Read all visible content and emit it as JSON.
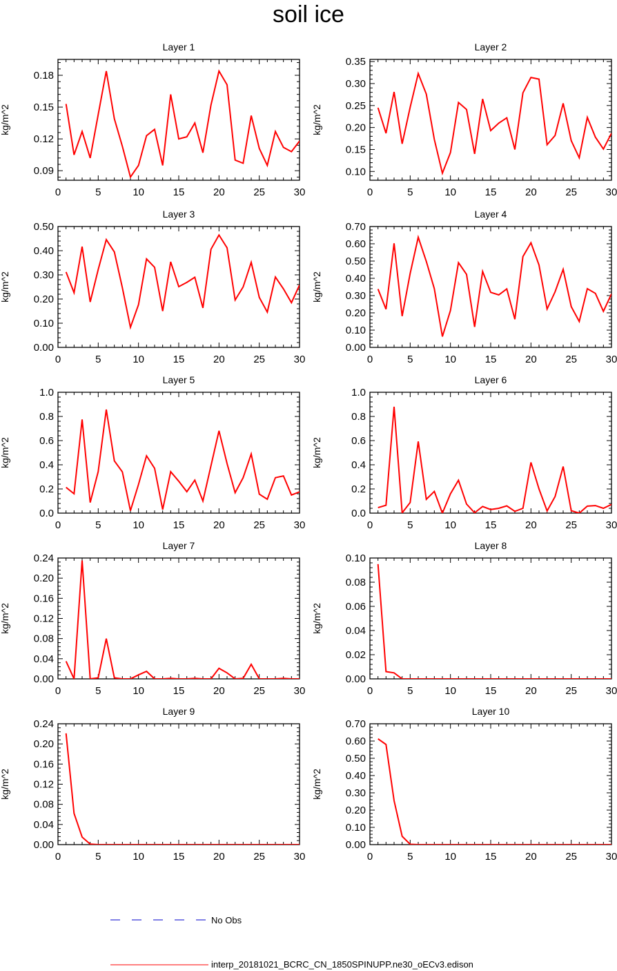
{
  "title": "soil ice",
  "colors": {
    "model": "#ff0000",
    "obs": "#0000cc",
    "axis": "#000000"
  },
  "legend": {
    "obs_label": "No Obs",
    "model_label": "interp_20181021_BCRC_CN_1850SPINUPP.ne30_oECv3.edison"
  },
  "chart_data": [
    {
      "type": "line",
      "title": "Layer 1",
      "ylabel": "kg/m^2",
      "xlim": [
        0,
        30
      ],
      "ylim": [
        0.081,
        0.195
      ],
      "xticks": [
        0,
        5,
        10,
        15,
        20,
        25,
        30
      ],
      "yticks": [
        0.09,
        0.12,
        0.15,
        0.18
      ],
      "ytick_labels": [
        "0.09",
        "0.12",
        "0.15",
        "0.18"
      ],
      "x": [
        1,
        2,
        3,
        4,
        5,
        6,
        7,
        8,
        9,
        10,
        11,
        12,
        13,
        14,
        15,
        16,
        17,
        18,
        19,
        20,
        21,
        22,
        23,
        24,
        25,
        26,
        27,
        28,
        29,
        30
      ],
      "series": [
        {
          "values": [
            0.153,
            0.105,
            0.127,
            0.102,
            0.143,
            0.184,
            0.139,
            0.113,
            0.084,
            0.095,
            0.123,
            0.129,
            0.095,
            0.162,
            0.12,
            0.122,
            0.135,
            0.107,
            0.152,
            0.184,
            0.171,
            0.1,
            0.097,
            0.142,
            0.111,
            0.095,
            0.127,
            0.112,
            0.108,
            0.118
          ]
        }
      ]
    },
    {
      "type": "line",
      "title": "Layer 2",
      "ylabel": "kg/m^2",
      "xlim": [
        0,
        30
      ],
      "ylim": [
        0.08,
        0.355
      ],
      "xticks": [
        0,
        5,
        10,
        15,
        20,
        25,
        30
      ],
      "yticks": [
        0.1,
        0.15,
        0.2,
        0.25,
        0.3,
        0.35
      ],
      "ytick_labels": [
        "0.10",
        "0.15",
        "0.20",
        "0.25",
        "0.30",
        "0.35"
      ],
      "x": [
        1,
        2,
        3,
        4,
        5,
        6,
        7,
        8,
        9,
        10,
        11,
        12,
        13,
        14,
        15,
        16,
        17,
        18,
        19,
        20,
        21,
        22,
        23,
        24,
        25,
        26,
        27,
        28,
        29,
        30
      ],
      "series": [
        {
          "values": [
            0.245,
            0.187,
            0.281,
            0.163,
            0.246,
            0.323,
            0.276,
            0.173,
            0.096,
            0.143,
            0.257,
            0.241,
            0.14,
            0.265,
            0.193,
            0.21,
            0.222,
            0.15,
            0.279,
            0.314,
            0.31,
            0.161,
            0.182,
            0.255,
            0.17,
            0.131,
            0.223,
            0.178,
            0.151,
            0.187
          ]
        }
      ]
    },
    {
      "type": "line",
      "title": "Layer 3",
      "ylabel": "kg/m^2",
      "xlim": [
        0,
        30
      ],
      "ylim": [
        0,
        0.5
      ],
      "xticks": [
        0,
        5,
        10,
        15,
        20,
        25,
        30
      ],
      "yticks": [
        0,
        0.1,
        0.2,
        0.3,
        0.4,
        0.5
      ],
      "ytick_labels": [
        "0.00",
        "0.10",
        "0.20",
        "0.30",
        "0.40",
        "0.50"
      ],
      "x": [
        1,
        2,
        3,
        4,
        5,
        6,
        7,
        8,
        9,
        10,
        11,
        12,
        13,
        14,
        15,
        16,
        17,
        18,
        19,
        20,
        21,
        22,
        23,
        24,
        25,
        26,
        27,
        28,
        29,
        30
      ],
      "series": [
        {
          "values": [
            0.312,
            0.226,
            0.417,
            0.188,
            0.322,
            0.446,
            0.395,
            0.247,
            0.083,
            0.177,
            0.366,
            0.331,
            0.15,
            0.354,
            0.251,
            0.269,
            0.29,
            0.163,
            0.406,
            0.465,
            0.412,
            0.196,
            0.25,
            0.352,
            0.207,
            0.146,
            0.291,
            0.242,
            0.185,
            0.258
          ]
        }
      ]
    },
    {
      "type": "line",
      "title": "Layer 4",
      "ylabel": "kg/m^2",
      "xlim": [
        0,
        30
      ],
      "ylim": [
        0,
        0.7
      ],
      "xticks": [
        0,
        5,
        10,
        15,
        20,
        25,
        30
      ],
      "yticks": [
        0,
        0.1,
        0.2,
        0.3,
        0.4,
        0.5,
        0.6,
        0.7
      ],
      "ytick_labels": [
        "0.00",
        "0.10",
        "0.20",
        "0.30",
        "0.40",
        "0.50",
        "0.60",
        "0.70"
      ],
      "x": [
        1,
        2,
        3,
        4,
        5,
        6,
        7,
        8,
        9,
        10,
        11,
        12,
        13,
        14,
        15,
        16,
        17,
        18,
        19,
        20,
        21,
        22,
        23,
        24,
        25,
        26,
        27,
        28,
        29,
        30
      ],
      "series": [
        {
          "values": [
            0.338,
            0.221,
            0.603,
            0.181,
            0.428,
            0.638,
            0.498,
            0.34,
            0.063,
            0.214,
            0.491,
            0.423,
            0.119,
            0.44,
            0.319,
            0.304,
            0.339,
            0.163,
            0.526,
            0.606,
            0.477,
            0.222,
            0.322,
            0.452,
            0.236,
            0.15,
            0.34,
            0.313,
            0.209,
            0.31
          ]
        }
      ]
    },
    {
      "type": "line",
      "title": "Layer 5",
      "ylabel": "kg/m^2",
      "xlim": [
        0,
        30
      ],
      "ylim": [
        0,
        1.0
      ],
      "xticks": [
        0,
        5,
        10,
        15,
        20,
        25,
        30
      ],
      "yticks": [
        0,
        0.2,
        0.4,
        0.6,
        0.8,
        1.0
      ],
      "ytick_labels": [
        "0.0",
        "0.2",
        "0.4",
        "0.6",
        "0.8",
        "1.0"
      ],
      "x": [
        1,
        2,
        3,
        4,
        5,
        6,
        7,
        8,
        9,
        10,
        11,
        12,
        13,
        14,
        15,
        16,
        17,
        18,
        19,
        20,
        21,
        22,
        23,
        24,
        25,
        26,
        27,
        28,
        29,
        30
      ],
      "series": [
        {
          "values": [
            0.213,
            0.16,
            0.775,
            0.088,
            0.344,
            0.857,
            0.432,
            0.341,
            0.02,
            0.238,
            0.474,
            0.371,
            0.03,
            0.343,
            0.264,
            0.177,
            0.273,
            0.1,
            0.392,
            0.681,
            0.41,
            0.169,
            0.293,
            0.49,
            0.157,
            0.115,
            0.293,
            0.308,
            0.15,
            0.176
          ]
        }
      ]
    },
    {
      "type": "line",
      "title": "Layer 6",
      "ylabel": "kg/m^2",
      "xlim": [
        0,
        30
      ],
      "ylim": [
        0,
        1.0
      ],
      "xticks": [
        0,
        5,
        10,
        15,
        20,
        25,
        30
      ],
      "yticks": [
        0,
        0.2,
        0.4,
        0.6,
        0.8,
        1.0
      ],
      "ytick_labels": [
        "0.0",
        "0.2",
        "0.4",
        "0.6",
        "0.8",
        "1.0"
      ],
      "x": [
        1,
        2,
        3,
        4,
        5,
        6,
        7,
        8,
        9,
        10,
        11,
        12,
        13,
        14,
        15,
        16,
        17,
        18,
        19,
        20,
        21,
        22,
        23,
        24,
        25,
        26,
        27,
        28,
        29,
        30
      ],
      "series": [
        {
          "values": [
            0.045,
            0.065,
            0.88,
            0.002,
            0.088,
            0.593,
            0.114,
            0.18,
            0.0,
            0.16,
            0.272,
            0.075,
            0.003,
            0.055,
            0.03,
            0.04,
            0.06,
            0.015,
            0.04,
            0.42,
            0.2,
            0.018,
            0.137,
            0.386,
            0.02,
            0.0,
            0.058,
            0.062,
            0.04,
            0.072
          ]
        }
      ]
    },
    {
      "type": "line",
      "title": "Layer 7",
      "ylabel": "kg/m^2",
      "xlim": [
        0,
        30
      ],
      "ylim": [
        0,
        0.24
      ],
      "xticks": [
        0,
        5,
        10,
        15,
        20,
        25,
        30
      ],
      "yticks": [
        0,
        0.04,
        0.08,
        0.12,
        0.16,
        0.2,
        0.24
      ],
      "ytick_labels": [
        "0.00",
        "0.04",
        "0.08",
        "0.12",
        "0.16",
        "0.20",
        "0.24"
      ],
      "x": [
        1,
        2,
        3,
        4,
        5,
        6,
        7,
        8,
        9,
        10,
        11,
        12,
        13,
        14,
        15,
        16,
        17,
        18,
        19,
        20,
        21,
        22,
        23,
        24,
        25,
        26,
        27,
        28,
        29,
        30
      ],
      "series": [
        {
          "values": [
            0.035,
            0.0,
            0.235,
            0.0,
            0.002,
            0.08,
            0.002,
            0.0,
            0.0,
            0.008,
            0.015,
            0.0,
            0.0,
            0.001,
            0.0,
            0.0,
            0.001,
            0.0,
            0.0,
            0.021,
            0.012,
            0.0,
            0.001,
            0.029,
            0.0,
            0.0,
            0.0,
            0.001,
            0.0,
            0.0
          ]
        }
      ]
    },
    {
      "type": "line",
      "title": "Layer 8",
      "ylabel": "kg/m^2",
      "xlim": [
        0,
        30
      ],
      "ylim": [
        0,
        0.1
      ],
      "xticks": [
        0,
        5,
        10,
        15,
        20,
        25,
        30
      ],
      "yticks": [
        0,
        0.02,
        0.04,
        0.06,
        0.08,
        0.1
      ],
      "ytick_labels": [
        "0.00",
        "0.02",
        "0.04",
        "0.06",
        "0.08",
        "0.10"
      ],
      "x": [
        1,
        2,
        3,
        4,
        5,
        6,
        7,
        8,
        9,
        10,
        11,
        12,
        13,
        14,
        15,
        16,
        17,
        18,
        19,
        20,
        21,
        22,
        23,
        24,
        25,
        26,
        27,
        28,
        29,
        30
      ],
      "series": [
        {
          "values": [
            0.095,
            0.006,
            0.005,
            0.0,
            0,
            0,
            0,
            0,
            0,
            0,
            0,
            0,
            0,
            0,
            0,
            0,
            0,
            0,
            0,
            0,
            0,
            0,
            0,
            0,
            0,
            0,
            0,
            0,
            0,
            0
          ]
        }
      ]
    },
    {
      "type": "line",
      "title": "Layer 9",
      "ylabel": "kg/m^2",
      "xlim": [
        0,
        30
      ],
      "ylim": [
        0,
        0.24
      ],
      "xticks": [
        0,
        5,
        10,
        15,
        20,
        25,
        30
      ],
      "yticks": [
        0,
        0.04,
        0.08,
        0.12,
        0.16,
        0.2,
        0.24
      ],
      "ytick_labels": [
        "0.00",
        "0.04",
        "0.08",
        "0.12",
        "0.16",
        "0.20",
        "0.24"
      ],
      "x": [
        1,
        2,
        3,
        4,
        5,
        6,
        7,
        8,
        9,
        10,
        11,
        12,
        13,
        14,
        15,
        16,
        17,
        18,
        19,
        20,
        21,
        22,
        23,
        24,
        25,
        26,
        27,
        28,
        29,
        30
      ],
      "series": [
        {
          "values": [
            0.221,
            0.062,
            0.015,
            0.001,
            0,
            0,
            0,
            0,
            0,
            0,
            0,
            0,
            0,
            0,
            0,
            0,
            0,
            0,
            0,
            0,
            0,
            0,
            0,
            0,
            0,
            0,
            0,
            0,
            0,
            0
          ]
        }
      ]
    },
    {
      "type": "line",
      "title": "Layer 10",
      "ylabel": "kg/m^2",
      "xlim": [
        0,
        30
      ],
      "ylim": [
        0,
        0.7
      ],
      "xticks": [
        0,
        5,
        10,
        15,
        20,
        25,
        30
      ],
      "yticks": [
        0,
        0.1,
        0.2,
        0.3,
        0.4,
        0.5,
        0.6,
        0.7
      ],
      "ytick_labels": [
        "0.00",
        "0.10",
        "0.20",
        "0.30",
        "0.40",
        "0.50",
        "0.60",
        "0.70"
      ],
      "x": [
        1,
        2,
        3,
        4,
        5,
        6,
        7,
        8,
        9,
        10,
        11,
        12,
        13,
        14,
        15,
        16,
        17,
        18,
        19,
        20,
        21,
        22,
        23,
        24,
        25,
        26,
        27,
        28,
        29,
        30
      ],
      "series": [
        {
          "values": [
            0.613,
            0.58,
            0.255,
            0.048,
            0.002,
            0,
            0,
            0,
            0,
            0,
            0,
            0,
            0,
            0,
            0,
            0,
            0,
            0,
            0,
            0,
            0,
            0,
            0,
            0,
            0,
            0,
            0,
            0,
            0,
            0
          ]
        }
      ]
    }
  ]
}
